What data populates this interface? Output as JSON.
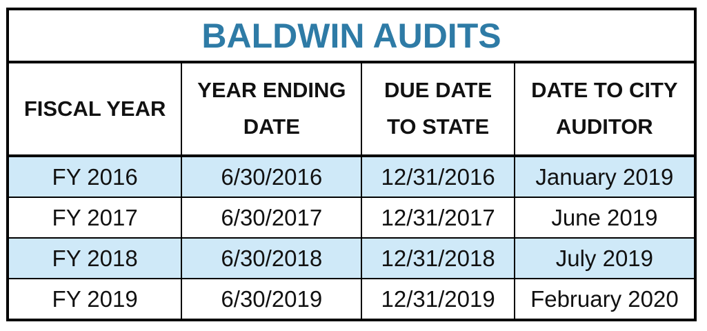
{
  "title": "BALDWIN AUDITS",
  "colors": {
    "title-color": "#2E7BA6",
    "band-color": "#CFE9F8",
    "border": "#000000",
    "text": "#111111"
  },
  "table": {
    "columns": [
      {
        "lines": [
          "FISCAL YEAR"
        ]
      },
      {
        "lines": [
          "YEAR ENDING",
          "DATE"
        ]
      },
      {
        "lines": [
          "DUE DATE",
          "TO STATE"
        ]
      },
      {
        "lines": [
          "DATE TO CITY",
          "AUDITOR"
        ]
      }
    ],
    "rows": [
      {
        "cells": [
          "FY 2016",
          "6/30/2016",
          "12/31/2016",
          "January 2019"
        ]
      },
      {
        "cells": [
          "FY 2017",
          "6/30/2017",
          "12/31/2017",
          "June 2019"
        ]
      },
      {
        "cells": [
          "FY 2018",
          "6/30/2018",
          "12/31/2018",
          "July 2019"
        ]
      },
      {
        "cells": [
          "FY 2019",
          "6/30/2019",
          "12/31/2019",
          "February 2020"
        ]
      }
    ]
  },
  "chart_data": {
    "type": "table",
    "title": "BALDWIN AUDITS",
    "columns": [
      "FISCAL YEAR",
      "YEAR ENDING DATE",
      "DUE DATE TO STATE",
      "DATE TO CITY AUDITOR"
    ],
    "rows": [
      [
        "FY 2016",
        "6/30/2016",
        "12/31/2016",
        "January 2019"
      ],
      [
        "FY 2017",
        "6/30/2017",
        "12/31/2017",
        "June 2019"
      ],
      [
        "FY 2018",
        "6/30/2018",
        "12/31/2018",
        "July 2019"
      ],
      [
        "FY 2019",
        "6/30/2019",
        "12/31/2019",
        "February 2020"
      ]
    ],
    "layout": {
      "banded_rows": [
        0,
        2
      ],
      "band_color": "#CFE9F8",
      "title_color": "#2E7BA6"
    }
  }
}
